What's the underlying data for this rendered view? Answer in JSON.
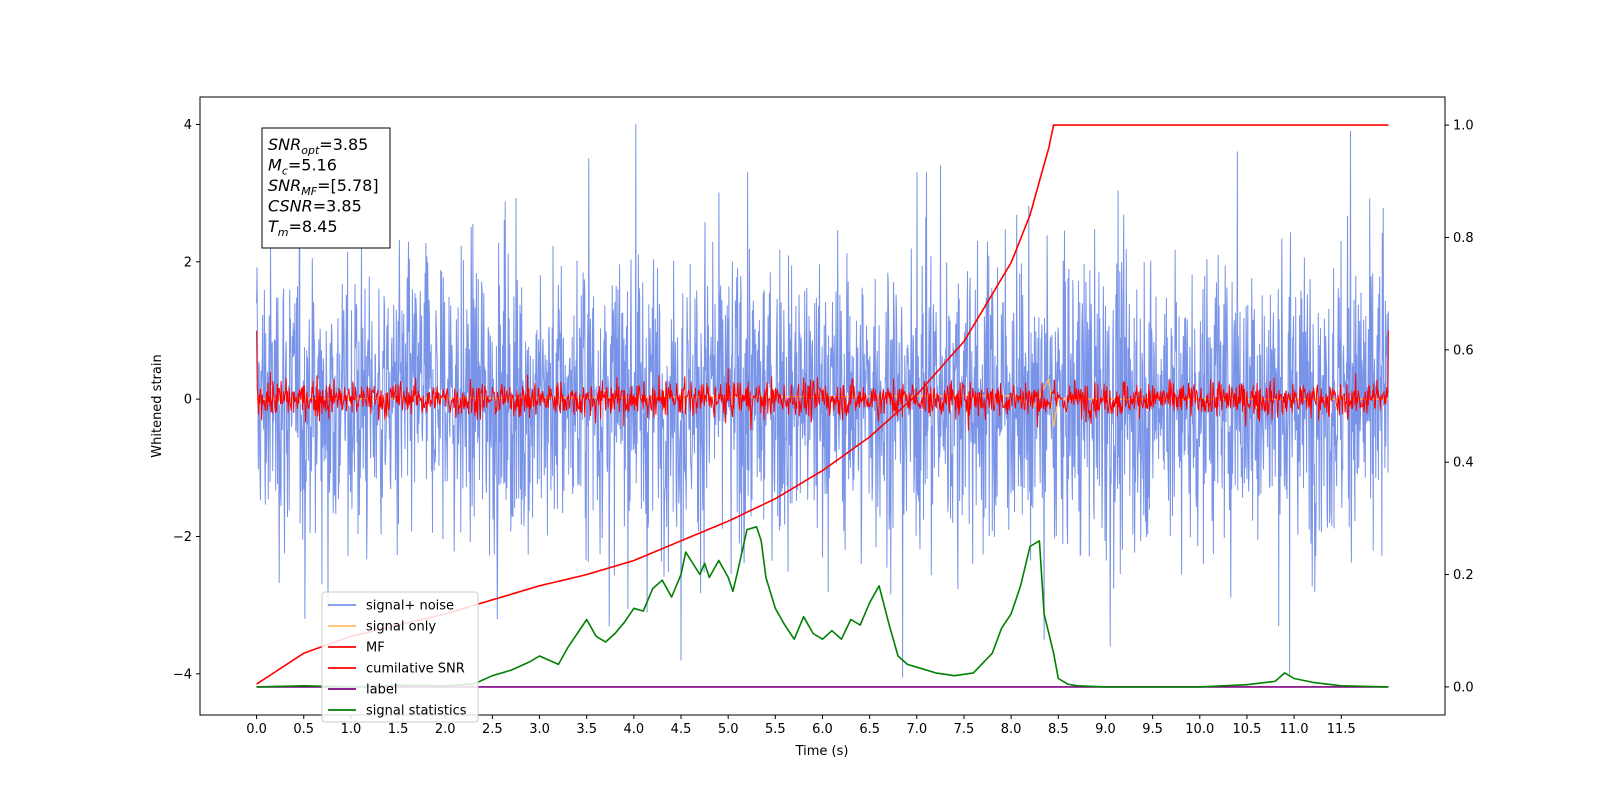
{
  "chart_data": {
    "type": "line",
    "xlabel": "Time (s)",
    "ylabel": "Whitened strain",
    "xlim": [
      -0.6,
      12.6
    ],
    "ylim": [
      -4.6,
      4.4
    ],
    "ylim_right": [
      -0.05,
      1.05
    ],
    "x_ticks": [
      0.0,
      0.5,
      1.0,
      1.5,
      2.0,
      2.5,
      3.0,
      3.5,
      4.0,
      4.5,
      5.0,
      5.5,
      6.0,
      6.5,
      7.0,
      7.5,
      8.0,
      8.5,
      9.0,
      9.5,
      10.0,
      10.5,
      11.0,
      11.5
    ],
    "x_tick_labels": [
      "0.0",
      "0.5",
      "1.0",
      "1.5",
      "2.0",
      "2.5",
      "3.0",
      "3.5",
      "4.0",
      "4.5",
      "5.0",
      "5.5",
      "6.0",
      "6.5",
      "7.0",
      "7.5",
      "8.0",
      "8.5",
      "9.0",
      "9.5",
      "10.0",
      "10.5",
      "11.0",
      "11.5"
    ],
    "y_ticks": [
      -4,
      -2,
      0,
      2,
      4
    ],
    "y_tick_labels": [
      "−4",
      "−2",
      "0",
      "2",
      "4"
    ],
    "y_right_ticks": [
      0.0,
      0.2,
      0.4,
      0.6,
      0.8,
      1.0
    ],
    "y_right_tick_labels": [
      "0.0",
      "0.2",
      "0.4",
      "0.6",
      "0.8",
      "1.0"
    ],
    "grid": false,
    "legend_position": "lower-left",
    "annotation_box": {
      "lines": [
        {
          "main": "SNR",
          "sub": "opt",
          "value": "=3.85"
        },
        {
          "main": "M",
          "sub": "c",
          "value": "=5.16"
        },
        {
          "main": "SNR",
          "sub": "MF",
          "value": "=[5.78]"
        },
        {
          "main": "CSNR",
          "sub": "",
          "value": "=3.85"
        },
        {
          "main": "T",
          "sub": "m",
          "value": "=8.45"
        }
      ]
    },
    "series": [
      {
        "name": "signal+ noise",
        "color": "#7893e8",
        "axis": "left",
        "kind": "noise-band",
        "x_range": [
          0.0,
          12.0
        ],
        "typical_range": [
          -2.2,
          2.2
        ],
        "peak_spikes": [
          {
            "x": 4.02,
            "y": 4.0
          },
          {
            "x": 3.52,
            "y": 3.5
          },
          {
            "x": 7.25,
            "y": 3.4
          },
          {
            "x": 10.4,
            "y": 3.6
          },
          {
            "x": 11.6,
            "y": 3.9
          },
          {
            "x": 7.0,
            "y": 3.3
          },
          {
            "x": 4.5,
            "y": -3.8
          },
          {
            "x": 6.85,
            "y": -4.05
          },
          {
            "x": 10.95,
            "y": -4.0
          },
          {
            "x": 8.35,
            "y": -3.5
          },
          {
            "x": 9.05,
            "y": -3.6
          }
        ]
      },
      {
        "name": "signal only",
        "color": "#ffbf66",
        "axis": "left",
        "x": [
          0.0,
          8.0,
          8.25,
          8.4,
          8.45,
          8.5,
          12.0
        ],
        "y": [
          0.0,
          0.05,
          -0.1,
          0.3,
          -0.4,
          0.0,
          0.0
        ]
      },
      {
        "name": "MF",
        "color": "#ff0000",
        "axis": "left",
        "kind": "noise-band",
        "x_range": [
          0.0,
          12.0
        ],
        "typical_range": [
          -0.3,
          0.3
        ],
        "edge_values": [
          1.0,
          1.0
        ]
      },
      {
        "name": "cumilative SNR",
        "color": "#ff0000",
        "axis": "right",
        "x": [
          0.0,
          0.5,
          1.0,
          1.5,
          2.0,
          2.5,
          3.0,
          3.5,
          4.0,
          4.5,
          5.0,
          5.5,
          6.0,
          6.5,
          7.0,
          7.5,
          8.0,
          8.2,
          8.4,
          8.45,
          12.0
        ],
        "y": [
          0.005,
          0.06,
          0.09,
          0.11,
          0.13,
          0.155,
          0.18,
          0.2,
          0.225,
          0.26,
          0.295,
          0.335,
          0.385,
          0.445,
          0.52,
          0.615,
          0.755,
          0.84,
          0.96,
          1.0,
          1.0
        ]
      },
      {
        "name": "label",
        "color": "#800080",
        "axis": "right",
        "x": [
          0.0,
          12.0
        ],
        "y": [
          0.0,
          0.0
        ]
      },
      {
        "name": "signal statistics",
        "color": "#008000",
        "axis": "right",
        "x": [
          0.0,
          0.5,
          1.0,
          1.5,
          2.0,
          2.3,
          2.5,
          2.7,
          2.9,
          3.0,
          3.2,
          3.3,
          3.5,
          3.6,
          3.7,
          3.8,
          3.9,
          4.0,
          4.1,
          4.2,
          4.3,
          4.4,
          4.5,
          4.55,
          4.7,
          4.75,
          4.8,
          4.9,
          5.0,
          5.05,
          5.1,
          5.2,
          5.3,
          5.35,
          5.4,
          5.5,
          5.6,
          5.7,
          5.8,
          5.9,
          6.0,
          6.1,
          6.2,
          6.3,
          6.4,
          6.5,
          6.6,
          6.7,
          6.8,
          6.9,
          7.0,
          7.2,
          7.4,
          7.6,
          7.8,
          7.9,
          8.0,
          8.1,
          8.2,
          8.3,
          8.35,
          8.45,
          8.5,
          8.6,
          8.7,
          9.0,
          10.0,
          10.5,
          10.8,
          10.9,
          11.0,
          11.2,
          11.5,
          12.0
        ],
        "y": [
          0.0,
          0.002,
          0.0,
          0.003,
          0.002,
          0.005,
          0.02,
          0.03,
          0.045,
          0.055,
          0.04,
          0.07,
          0.12,
          0.09,
          0.08,
          0.095,
          0.115,
          0.14,
          0.135,
          0.175,
          0.19,
          0.16,
          0.2,
          0.24,
          0.2,
          0.22,
          0.195,
          0.225,
          0.195,
          0.17,
          0.205,
          0.28,
          0.285,
          0.26,
          0.195,
          0.14,
          0.11,
          0.085,
          0.125,
          0.095,
          0.085,
          0.1,
          0.085,
          0.12,
          0.11,
          0.15,
          0.18,
          0.115,
          0.055,
          0.04,
          0.035,
          0.025,
          0.02,
          0.025,
          0.06,
          0.105,
          0.13,
          0.18,
          0.25,
          0.26,
          0.13,
          0.06,
          0.015,
          0.005,
          0.002,
          0.0,
          0.0,
          0.004,
          0.01,
          0.025,
          0.015,
          0.008,
          0.002,
          0.0
        ]
      }
    ]
  }
}
